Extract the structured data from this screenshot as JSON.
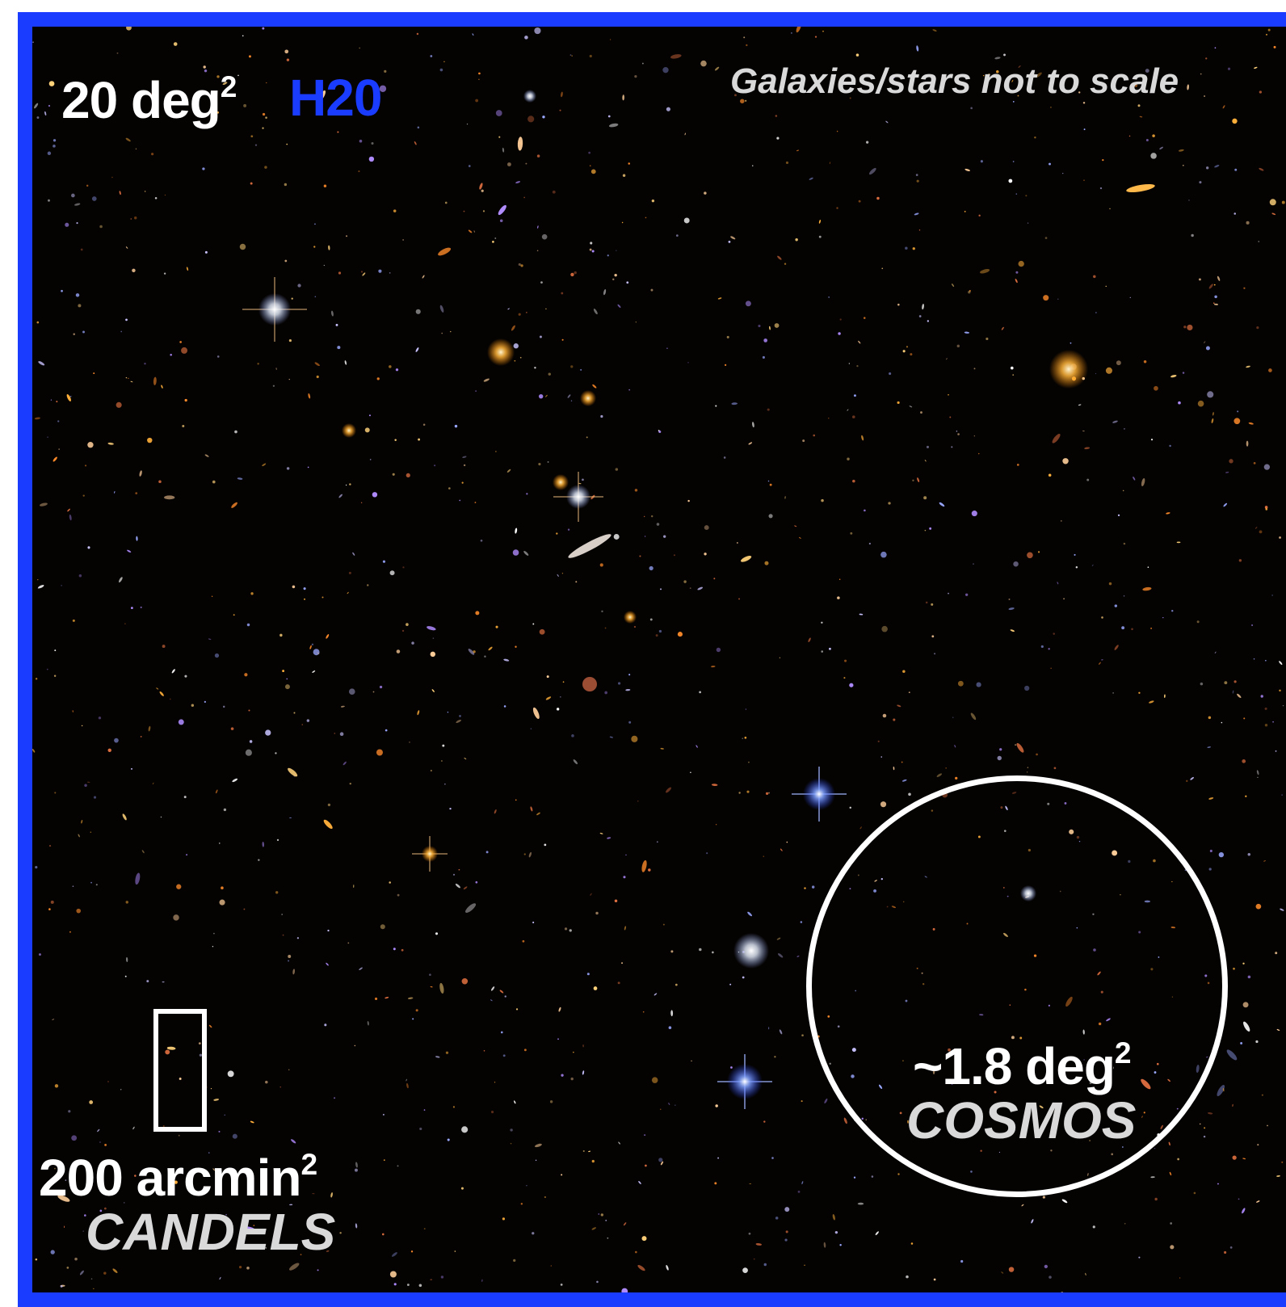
{
  "figure": {
    "survey_area": {
      "value": "20 deg",
      "power": "2"
    },
    "survey_name": "H20",
    "scale_note": "Galaxies/stars not to scale",
    "cosmos": {
      "area": "~1.8 deg",
      "power": "2",
      "name": "COSMOS"
    },
    "candels": {
      "area": "200 arcmin",
      "power": "2",
      "name": "CANDELS"
    }
  },
  "colors": {
    "frame_border": "#1a3cff",
    "survey_name": "#1a3cff",
    "background": "#050302",
    "outline": "#ffffff"
  }
}
